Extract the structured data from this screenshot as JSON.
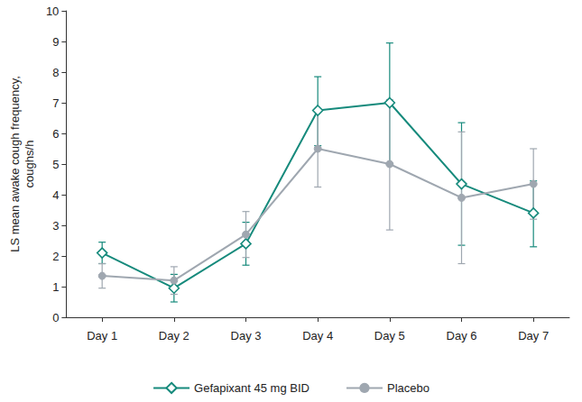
{
  "chart_data": {
    "type": "line",
    "ylabel": "LS mean awake cough frequency,\ncoughs/h",
    "categories": [
      "Day 1",
      "Day 2",
      "Day 3",
      "Day 4",
      "Day 5",
      "Day 6",
      "Day 7"
    ],
    "series": [
      {
        "name": "Gefapixant 45 mg BID",
        "color": "#168a7c",
        "marker": "open-diamond",
        "values": [
          2.1,
          0.95,
          2.4,
          6.75,
          7.0,
          4.35,
          3.4
        ],
        "lower": [
          1.75,
          0.5,
          1.7,
          5.6,
          5.0,
          2.35,
          2.3
        ],
        "upper": [
          2.45,
          1.4,
          3.1,
          7.85,
          8.95,
          6.35,
          4.45
        ]
      },
      {
        "name": "Placebo",
        "color": "#9fa7b0",
        "marker": "circle",
        "values": [
          1.35,
          1.2,
          2.7,
          5.5,
          5.0,
          3.9,
          4.35
        ],
        "lower": [
          0.95,
          0.75,
          1.95,
          4.25,
          2.85,
          1.75,
          3.2
        ],
        "upper": [
          1.75,
          1.65,
          3.45,
          6.75,
          7.1,
          6.05,
          5.5
        ]
      }
    ],
    "ylim": [
      0,
      10
    ],
    "yticks": [
      0,
      1,
      2,
      3,
      4,
      5,
      6,
      7,
      8,
      9,
      10
    ],
    "grid": false,
    "legend": "bottom"
  }
}
